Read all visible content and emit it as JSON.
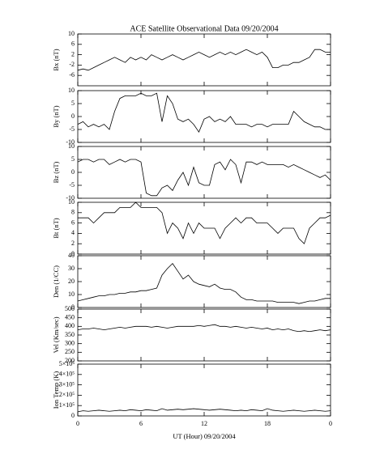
{
  "chart_data": [
    {
      "type": "line",
      "title": "ACE Satellite Observational Data   09/20/2004",
      "ylabel": "Bx (nT)",
      "color": "#000000",
      "x": [
        0,
        0.5,
        1,
        1.5,
        2,
        2.5,
        3,
        3.5,
        4,
        4.5,
        5,
        5.5,
        6,
        6.5,
        7,
        7.5,
        8,
        8.5,
        9,
        9.5,
        10,
        10.5,
        11,
        11.5,
        12,
        12.5,
        13,
        13.5,
        14,
        14.5,
        15,
        15.5,
        16,
        16.5,
        17,
        17.5,
        18,
        18.5,
        19,
        19.5,
        20,
        20.5,
        21,
        21.5,
        22,
        22.5,
        23,
        23.5,
        24
      ],
      "values": [
        -4,
        -3.5,
        -4,
        -3,
        -2,
        -1,
        0,
        1,
        0,
        -1,
        1,
        0,
        1,
        0,
        2,
        1,
        0,
        1,
        2,
        1,
        0,
        1,
        2,
        3,
        2,
        1,
        2,
        3,
        2,
        3,
        2,
        3,
        4,
        3,
        2,
        3,
        1,
        -3,
        -3,
        -2,
        -2,
        -1,
        -1,
        0,
        1,
        4,
        4,
        3,
        3
      ],
      "xlim": [
        0,
        24
      ],
      "ylim": [
        -10,
        10
      ],
      "yticks": [
        -6,
        -2,
        2,
        6,
        10
      ]
    },
    {
      "type": "line",
      "ylabel": "By (nT)",
      "color": "#000000",
      "x": [
        0,
        0.5,
        1,
        1.5,
        2,
        2.5,
        3,
        3.5,
        4,
        4.5,
        5,
        5.5,
        6,
        6.5,
        7,
        7.5,
        8,
        8.5,
        9,
        9.5,
        10,
        10.5,
        11,
        11.5,
        12,
        12.5,
        13,
        13.5,
        14,
        14.5,
        15,
        15.5,
        16,
        16.5,
        17,
        17.5,
        18,
        18.5,
        19,
        19.5,
        20,
        20.5,
        21,
        21.5,
        22,
        22.5,
        23,
        23.5,
        24
      ],
      "values": [
        -3,
        -2,
        -4,
        -3,
        -4,
        -3,
        -5,
        2,
        7,
        8,
        8,
        8,
        9,
        8,
        8,
        9,
        -2,
        8,
        5,
        -1,
        -2,
        -1,
        -3,
        -6,
        -1,
        0,
        -2,
        -1,
        -2,
        0,
        -3,
        -3,
        -3,
        -4,
        -3,
        -3,
        -4,
        -3,
        -3,
        -3,
        -3,
        2,
        0,
        -2,
        -3,
        -4,
        -4,
        -5,
        -5
      ],
      "xlim": [
        0,
        24
      ],
      "ylim": [
        -10,
        10
      ],
      "yticks": [
        -10,
        -5,
        0,
        5,
        10
      ]
    },
    {
      "type": "line",
      "ylabel": "Bz (nT)",
      "color": "#000000",
      "x": [
        0,
        0.5,
        1,
        1.5,
        2,
        2.5,
        3,
        3.5,
        4,
        4.5,
        5,
        5.5,
        6,
        6.5,
        7,
        7.5,
        8,
        8.5,
        9,
        9.5,
        10,
        10.5,
        11,
        11.5,
        12,
        12.5,
        13,
        13.5,
        14,
        14.5,
        15,
        15.5,
        16,
        16.5,
        17,
        17.5,
        18,
        18.5,
        19,
        19.5,
        20,
        20.5,
        21,
        21.5,
        22,
        22.5,
        23,
        23.5,
        24
      ],
      "values": [
        4,
        5,
        5,
        4,
        5,
        5,
        3,
        4,
        5,
        4,
        5,
        5,
        4,
        -8,
        -9,
        -9,
        -6,
        -5,
        -7,
        -3,
        0,
        -5,
        2,
        -4,
        -5,
        -5,
        3,
        4,
        1,
        5,
        3,
        -4,
        4,
        4,
        3,
        4,
        3,
        3,
        3,
        3,
        2,
        3,
        2,
        1,
        0,
        -1,
        -2,
        -1,
        -3
      ],
      "xlim": [
        0,
        24
      ],
      "ylim": [
        -10,
        10
      ],
      "yticks": [
        -10,
        -5,
        0,
        5,
        10
      ]
    },
    {
      "type": "line",
      "ylabel": "Bt (nT)",
      "color": "#000000",
      "x": [
        0,
        0.5,
        1,
        1.5,
        2,
        2.5,
        3,
        3.5,
        4,
        4.5,
        5,
        5.5,
        6,
        6.5,
        7,
        7.5,
        8,
        8.5,
        9,
        9.5,
        10,
        10.5,
        11,
        11.5,
        12,
        12.5,
        13,
        13.5,
        14,
        14.5,
        15,
        15.5,
        16,
        16.5,
        17,
        17.5,
        18,
        18.5,
        19,
        19.5,
        20,
        20.5,
        21,
        21.5,
        22,
        22.5,
        23,
        23.5,
        24
      ],
      "values": [
        7,
        7,
        7,
        6,
        7,
        8,
        8,
        8,
        9,
        9,
        9,
        10,
        9,
        9,
        9,
        9,
        8,
        4,
        6,
        5,
        3,
        6,
        4,
        6,
        5,
        5,
        5,
        3,
        5,
        6,
        7,
        6,
        7,
        7,
        6,
        6,
        6,
        5,
        4,
        5,
        5,
        5,
        3,
        2,
        5,
        6,
        7,
        7,
        7.5
      ],
      "xlim": [
        0,
        24
      ],
      "ylim": [
        0,
        10
      ],
      "yticks": [
        0,
        2,
        4,
        6,
        8,
        10
      ]
    },
    {
      "type": "line",
      "ylabel": "Den (1/CC)",
      "color": "#000000",
      "x": [
        0,
        0.5,
        1,
        1.5,
        2,
        2.5,
        3,
        3.5,
        4,
        4.5,
        5,
        5.5,
        6,
        6.5,
        7,
        7.5,
        8,
        8.5,
        9,
        9.5,
        10,
        10.5,
        11,
        11.5,
        12,
        12.5,
        13,
        13.5,
        14,
        14.5,
        15,
        15.5,
        16,
        16.5,
        17,
        17.5,
        18,
        18.5,
        19,
        19.5,
        20,
        20.5,
        21,
        21.5,
        22,
        22.5,
        23,
        23.5,
        24
      ],
      "values": [
        5,
        6,
        7,
        8,
        9,
        9,
        10,
        10,
        11,
        11,
        12,
        12,
        13,
        13,
        14,
        15,
        25,
        30,
        34,
        28,
        22,
        25,
        20,
        18,
        17,
        16,
        18,
        15,
        14,
        14,
        12,
        8,
        6,
        6,
        5,
        5,
        5,
        5,
        4,
        4,
        4,
        4,
        3,
        4,
        5,
        5,
        6,
        7,
        7
      ],
      "xlim": [
        0,
        24
      ],
      "ylim": [
        0,
        40
      ],
      "yticks": [
        0,
        10,
        20,
        30,
        40
      ]
    },
    {
      "type": "line",
      "ylabel": "Vel (Km/sec)",
      "color": "#000000",
      "x": [
        0,
        0.5,
        1,
        1.5,
        2,
        2.5,
        3,
        3.5,
        4,
        4.5,
        5,
        5.5,
        6,
        6.5,
        7,
        7.5,
        8,
        8.5,
        9,
        9.5,
        10,
        10.5,
        11,
        11.5,
        12,
        12.5,
        13,
        13.5,
        14,
        14.5,
        15,
        15.5,
        16,
        16.5,
        17,
        17.5,
        18,
        18.5,
        19,
        19.5,
        20,
        20.5,
        21,
        21.5,
        22,
        22.5,
        23,
        23.5,
        24
      ],
      "values": [
        380,
        385,
        385,
        390,
        385,
        380,
        385,
        390,
        395,
        390,
        395,
        400,
        400,
        400,
        395,
        400,
        395,
        390,
        395,
        400,
        400,
        400,
        400,
        405,
        400,
        405,
        410,
        400,
        400,
        395,
        400,
        395,
        390,
        395,
        390,
        385,
        390,
        380,
        385,
        380,
        385,
        375,
        370,
        375,
        370,
        375,
        380,
        375,
        380
      ],
      "xlim": [
        0,
        24
      ],
      "ylim": [
        200,
        500
      ],
      "yticks": [
        200,
        250,
        300,
        350,
        400,
        450,
        500
      ]
    },
    {
      "type": "line",
      "ylabel": "Ion Temp (K)",
      "xlabel": "UT (Hour)   09/20/2004",
      "color": "#000000",
      "x": [
        0,
        0.5,
        1,
        1.5,
        2,
        2.5,
        3,
        3.5,
        4,
        4.5,
        5,
        5.5,
        6,
        6.5,
        7,
        7.5,
        8,
        8.5,
        9,
        9.5,
        10,
        10.5,
        11,
        11.5,
        12,
        12.5,
        13,
        13.5,
        14,
        14.5,
        15,
        15.5,
        16,
        16.5,
        17,
        17.5,
        18,
        18.5,
        19,
        19.5,
        20,
        20.5,
        21,
        21.5,
        22,
        22.5,
        23,
        23.5,
        24
      ],
      "values": [
        40000,
        50000,
        45000,
        50000,
        55000,
        50000,
        45000,
        50000,
        55000,
        50000,
        60000,
        55000,
        50000,
        60000,
        55000,
        50000,
        70000,
        55000,
        60000,
        65000,
        60000,
        65000,
        70000,
        65000,
        60000,
        55000,
        60000,
        65000,
        60000,
        55000,
        50000,
        55000,
        50000,
        60000,
        55000,
        50000,
        70000,
        55000,
        50000,
        45000,
        50000,
        55000,
        50000,
        45000,
        50000,
        55000,
        50000,
        45000,
        50000
      ],
      "xlim": [
        0,
        24
      ],
      "ylim": [
        0,
        500000
      ],
      "yticks": [
        0,
        {
          "value": 100000,
          "label": "1×10⁵"
        },
        {
          "value": 200000,
          "label": "2×10⁵"
        },
        {
          "value": 300000,
          "label": "3×10⁵"
        },
        {
          "value": 400000,
          "label": "4×10⁵"
        },
        {
          "value": 500000,
          "label": "5×10⁵"
        }
      ],
      "xticks": [
        0,
        6,
        12,
        18,
        {
          "value": 24,
          "label": "0"
        }
      ]
    }
  ]
}
